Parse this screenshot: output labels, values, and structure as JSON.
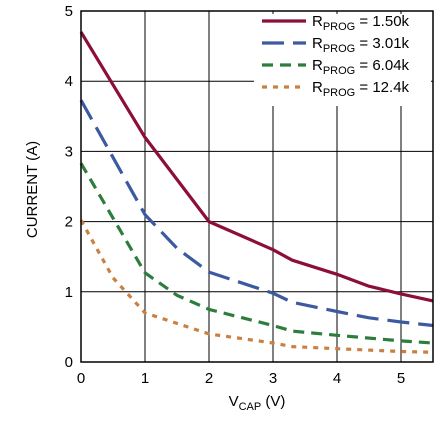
{
  "chart_data": {
    "type": "line",
    "xlabel": "V",
    "xlabel_sub": "CAP",
    "xlabel_unit": " (V)",
    "ylabel": "CURRENT (A)",
    "xlim": [
      0,
      5.5
    ],
    "ylim": [
      0,
      5
    ],
    "x_ticks": [
      "0",
      "1",
      "2",
      "3",
      "4",
      "5"
    ],
    "y_ticks": [
      "0",
      "1",
      "2",
      "3",
      "4",
      "5"
    ],
    "grid": true,
    "legend_position": "top-right",
    "series": [
      {
        "name": "R",
        "name_sub": "PROG",
        "name_value": " = 1.50k",
        "color": "#8b0f36",
        "dash": "solid",
        "points": [
          [
            0,
            4.7
          ],
          [
            1,
            3.2
          ],
          [
            2,
            2.0
          ],
          [
            3,
            1.6
          ],
          [
            3.3,
            1.45
          ],
          [
            4,
            1.25
          ],
          [
            4.5,
            1.08
          ],
          [
            5,
            0.97
          ],
          [
            5.5,
            0.87
          ]
        ]
      },
      {
        "name": "R",
        "name_sub": "PROG",
        "name_value": " = 3.01k",
        "color": "#3c5aa0",
        "dash": "longdash",
        "points": [
          [
            0,
            3.73
          ],
          [
            1,
            2.1
          ],
          [
            1.5,
            1.62
          ],
          [
            2,
            1.28
          ],
          [
            3,
            0.98
          ],
          [
            3.3,
            0.85
          ],
          [
            4,
            0.72
          ],
          [
            4.5,
            0.63
          ],
          [
            5,
            0.57
          ],
          [
            5.5,
            0.52
          ]
        ]
      },
      {
        "name": "R",
        "name_sub": "PROG",
        "name_value": " = 6.04k",
        "color": "#2d7d3c",
        "dash": "dash",
        "points": [
          [
            0,
            2.83
          ],
          [
            1,
            1.27
          ],
          [
            1.5,
            0.95
          ],
          [
            2,
            0.75
          ],
          [
            3,
            0.52
          ],
          [
            3.3,
            0.44
          ],
          [
            4,
            0.38
          ],
          [
            5,
            0.3
          ],
          [
            5.5,
            0.27
          ]
        ]
      },
      {
        "name": "R",
        "name_sub": "PROG",
        "name_value": " = 12.4k",
        "color": "#c98040",
        "dash": "dot",
        "points": [
          [
            0,
            2.02
          ],
          [
            0.5,
            1.2
          ],
          [
            1,
            0.7
          ],
          [
            2,
            0.4
          ],
          [
            3,
            0.27
          ],
          [
            3.3,
            0.22
          ],
          [
            4,
            0.19
          ],
          [
            5,
            0.15
          ],
          [
            5.5,
            0.14
          ]
        ]
      }
    ]
  }
}
